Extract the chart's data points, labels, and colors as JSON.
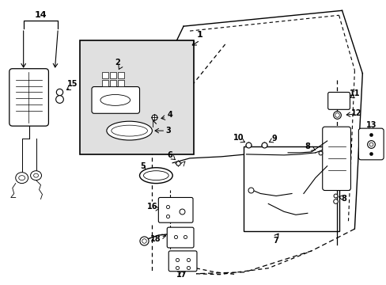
{
  "bg_color": "#ffffff",
  "lc": "#000000",
  "box1_bg": "#e0e0e0",
  "figsize": [
    4.89,
    3.6
  ],
  "dpi": 100
}
